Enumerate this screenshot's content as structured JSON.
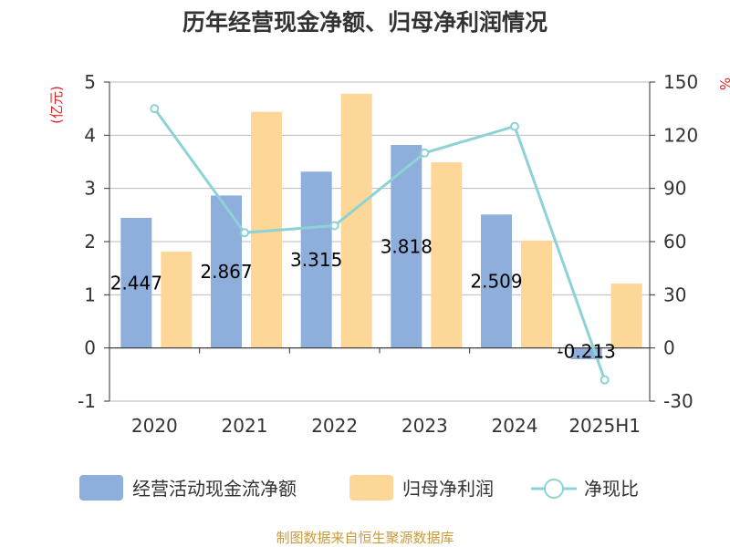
{
  "chart_data": {
    "type": "bar",
    "title": "历年经营现金净额、归母净利润情况",
    "categories": [
      "2020",
      "2021",
      "2022",
      "2023",
      "2024",
      "2025H1"
    ],
    "y_left_unit": "(亿元)",
    "y_right_unit": "%",
    "y_left_range": [
      -1,
      5
    ],
    "y_left_ticks": [
      "5",
      "4",
      "3",
      "2",
      "1",
      "0",
      "-1"
    ],
    "y_right_range": [
      -30,
      150
    ],
    "y_right_ticks": [
      "150",
      "120",
      "90",
      "60",
      "30",
      "0",
      "-30"
    ],
    "grid": true,
    "legend_position": "bottom",
    "series": [
      {
        "name": "经营活动现金流净额",
        "type": "bar",
        "axis": "left",
        "color": "#8eaedb",
        "values": [
          2.447,
          2.867,
          3.315,
          3.818,
          2.509,
          -0.213
        ],
        "labels": [
          "2.447",
          "2.867",
          "3.315",
          "3.818",
          "2.509",
          "-0.213"
        ]
      },
      {
        "name": "归母净利润",
        "type": "bar",
        "axis": "left",
        "color": "#fdd797",
        "values": [
          1.81,
          4.44,
          4.78,
          3.49,
          2.02,
          1.21
        ]
      },
      {
        "name": "净现比",
        "type": "line",
        "axis": "right",
        "color": "#8dd3d6",
        "values": [
          135,
          65,
          69,
          110,
          125,
          -18
        ]
      }
    ],
    "source": "制图数据来自恒生聚源数据库"
  }
}
